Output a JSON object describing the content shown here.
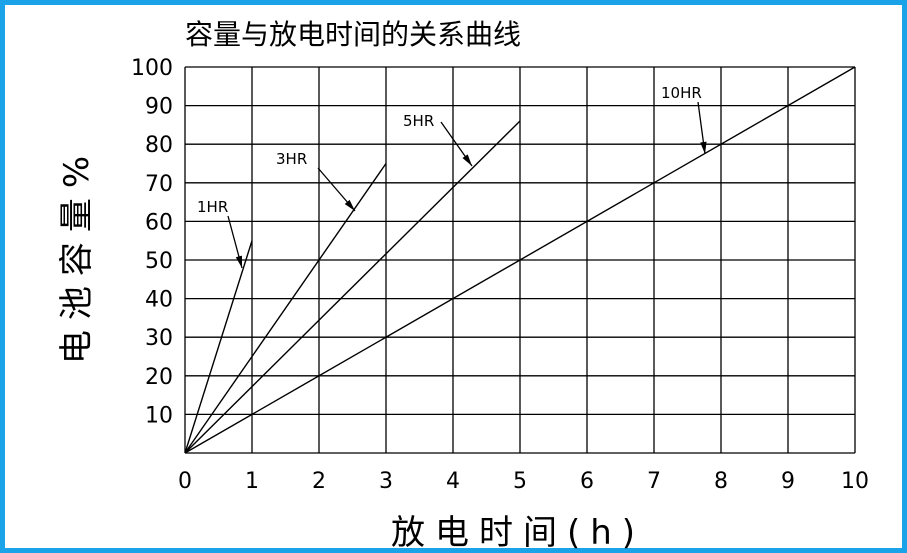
{
  "chart_data": {
    "type": "line",
    "title": "容量与放电时间的关系曲线",
    "xlabel": "放电时间(h)",
    "ylabel": "电池容量%",
    "xlim": [
      0,
      10
    ],
    "ylim": [
      0,
      100
    ],
    "x_ticks": [
      "0",
      "1",
      "2",
      "3",
      "4",
      "5",
      "6",
      "7",
      "8",
      "9",
      "10"
    ],
    "y_ticks": [
      "10",
      "20",
      "30",
      "40",
      "50",
      "60",
      "70",
      "80",
      "90",
      "100"
    ],
    "grid": true,
    "series": [
      {
        "name": "1HR",
        "points": [
          [
            0,
            0
          ],
          [
            1,
            55
          ]
        ]
      },
      {
        "name": "3HR",
        "points": [
          [
            0,
            0
          ],
          [
            3,
            75
          ]
        ]
      },
      {
        "name": "5HR",
        "points": [
          [
            0,
            0
          ],
          [
            5,
            86
          ]
        ]
      },
      {
        "name": "10HR",
        "points": [
          [
            0,
            0
          ],
          [
            10,
            100
          ]
        ]
      }
    ],
    "colors": {
      "frame": "#1aa3e8",
      "ink": "#000000",
      "background": "#ffffff"
    }
  }
}
